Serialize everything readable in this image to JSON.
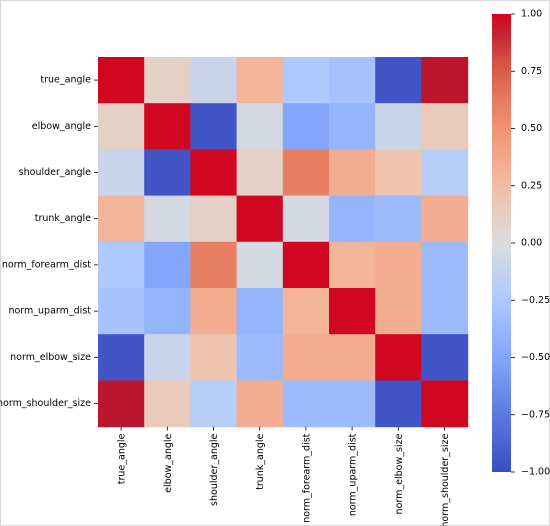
{
  "chart_data": {
    "type": "heatmap",
    "title": "",
    "xlabel": "",
    "ylabel": "",
    "x_labels": [
      "true_angle",
      "elbow_angle",
      "shoulder_angle",
      "trunk_angle",
      "norm_forearm_dist",
      "norm_uparm_dist",
      "norm_elbow_size",
      "norm_shoulder_size"
    ],
    "y_labels": [
      "true_angle",
      "elbow_angle",
      "shoulder_angle",
      "trunk_angle",
      "norm_forearm_dist",
      "norm_uparm_dist",
      "norm_elbow_size",
      "norm_shoulder_size"
    ],
    "values": [
      [
        1.0,
        0.1,
        -0.1,
        0.3,
        -0.25,
        -0.3,
        -0.95,
        0.95
      ],
      [
        0.1,
        1.0,
        -0.95,
        -0.05,
        -0.5,
        -0.4,
        -0.1,
        0.15
      ],
      [
        -0.1,
        -0.95,
        1.0,
        0.1,
        0.6,
        0.35,
        0.2,
        -0.2
      ],
      [
        0.3,
        -0.05,
        0.1,
        1.0,
        -0.05,
        -0.4,
        -0.35,
        0.35
      ],
      [
        -0.25,
        -0.5,
        0.6,
        -0.05,
        1.0,
        0.3,
        0.35,
        -0.35
      ],
      [
        -0.3,
        -0.4,
        0.35,
        -0.4,
        0.3,
        1.0,
        0.35,
        -0.35
      ],
      [
        -0.95,
        -0.1,
        0.2,
        -0.35,
        0.35,
        0.35,
        1.0,
        -0.95
      ],
      [
        0.95,
        0.15,
        -0.2,
        0.35,
        -0.35,
        -0.35,
        -0.95,
        1.0
      ]
    ],
    "colorbar": {
      "colormap": "coolwarm",
      "range": [
        -1.0,
        1.0
      ],
      "ticks": [
        {
          "value": 1.0,
          "label": "1.00"
        },
        {
          "value": 0.75,
          "label": "0.75"
        },
        {
          "value": 0.5,
          "label": "0.50"
        },
        {
          "value": 0.25,
          "label": "0.25"
        },
        {
          "value": 0.0,
          "label": "0.00"
        },
        {
          "value": -0.25,
          "label": "−0.25"
        },
        {
          "value": -0.5,
          "label": "−0.50"
        },
        {
          "value": -0.75,
          "label": "−0.75"
        },
        {
          "value": -1.0,
          "label": "−1.00"
        }
      ]
    },
    "grid": false,
    "legend": "colorbar-right"
  }
}
